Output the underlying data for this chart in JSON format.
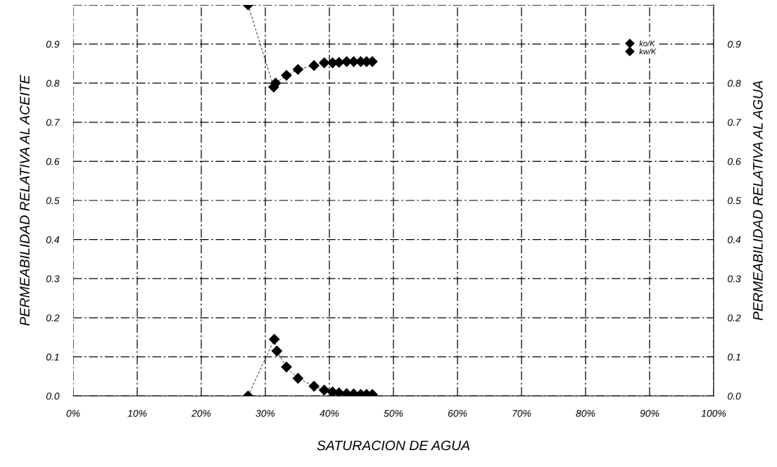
{
  "chart_data": {
    "type": "line",
    "xlabel": "SATURACION DE AGUA",
    "ylabel": "PERMEABILIDAD RELATIVA AL ACEITE",
    "y2label": "PERMEABILIDAD RELATIVA AL AGUA",
    "marker": "diamond",
    "line_style": "dashed",
    "grid": true,
    "legend": "top right",
    "xlim": [
      0,
      100
    ],
    "ylim": [
      0,
      1.0
    ],
    "y2lim": [
      0,
      1.0
    ],
    "xticks": [
      {
        "value": 0,
        "label": "0%"
      },
      {
        "value": 10,
        "label": "10%"
      },
      {
        "value": 20,
        "label": "20%"
      },
      {
        "value": 30,
        "label": "30%"
      },
      {
        "value": 40,
        "label": "40%"
      },
      {
        "value": 50,
        "label": "50%"
      },
      {
        "value": 60,
        "label": "60%"
      },
      {
        "value": 70,
        "label": "70%"
      },
      {
        "value": 80,
        "label": "80%"
      },
      {
        "value": 90,
        "label": "90%"
      },
      {
        "value": 100,
        "label": "100%"
      }
    ],
    "yticks": [
      {
        "value": 0,
        "label": "0.0"
      },
      0.1,
      0.2,
      0.3,
      0.4,
      0.5,
      0.6,
      0.7,
      0.8,
      0.9,
      {
        "value": 1.0,
        "label": null
      }
    ],
    "y2ticks": [
      {
        "value": 0,
        "label": "0.0"
      },
      0.1,
      0.2,
      0.3,
      0.4,
      0.5,
      0.6,
      0.7,
      0.8,
      0.9,
      {
        "value": 1.0,
        "label": null
      }
    ],
    "series": [
      {
        "name": "ko/K",
        "color": "#000000",
        "x": [
          27.3,
          31.3,
          31.6,
          33.3,
          35.1,
          37.6,
          39.2,
          40.5,
          41.5,
          42.7,
          43.8,
          44.9,
          45.8,
          46.7
        ],
        "values": [
          1.0,
          0.79,
          0.8,
          0.82,
          0.835,
          0.845,
          0.852,
          0.852,
          0.853,
          0.855,
          0.855,
          0.855,
          0.855,
          0.855
        ]
      },
      {
        "name": "kw/K",
        "color": "#000000",
        "x": [
          27.3,
          31.4,
          31.8,
          33.3,
          35.1,
          37.6,
          39.2,
          40.5,
          41.5,
          42.7,
          43.8,
          44.9,
          45.8,
          46.7
        ],
        "values": [
          0.0,
          0.145,
          0.115,
          0.074,
          0.045,
          0.025,
          0.015,
          0.01,
          0.008,
          0.006,
          0.005,
          0.004,
          0.004,
          0.004
        ]
      }
    ]
  }
}
